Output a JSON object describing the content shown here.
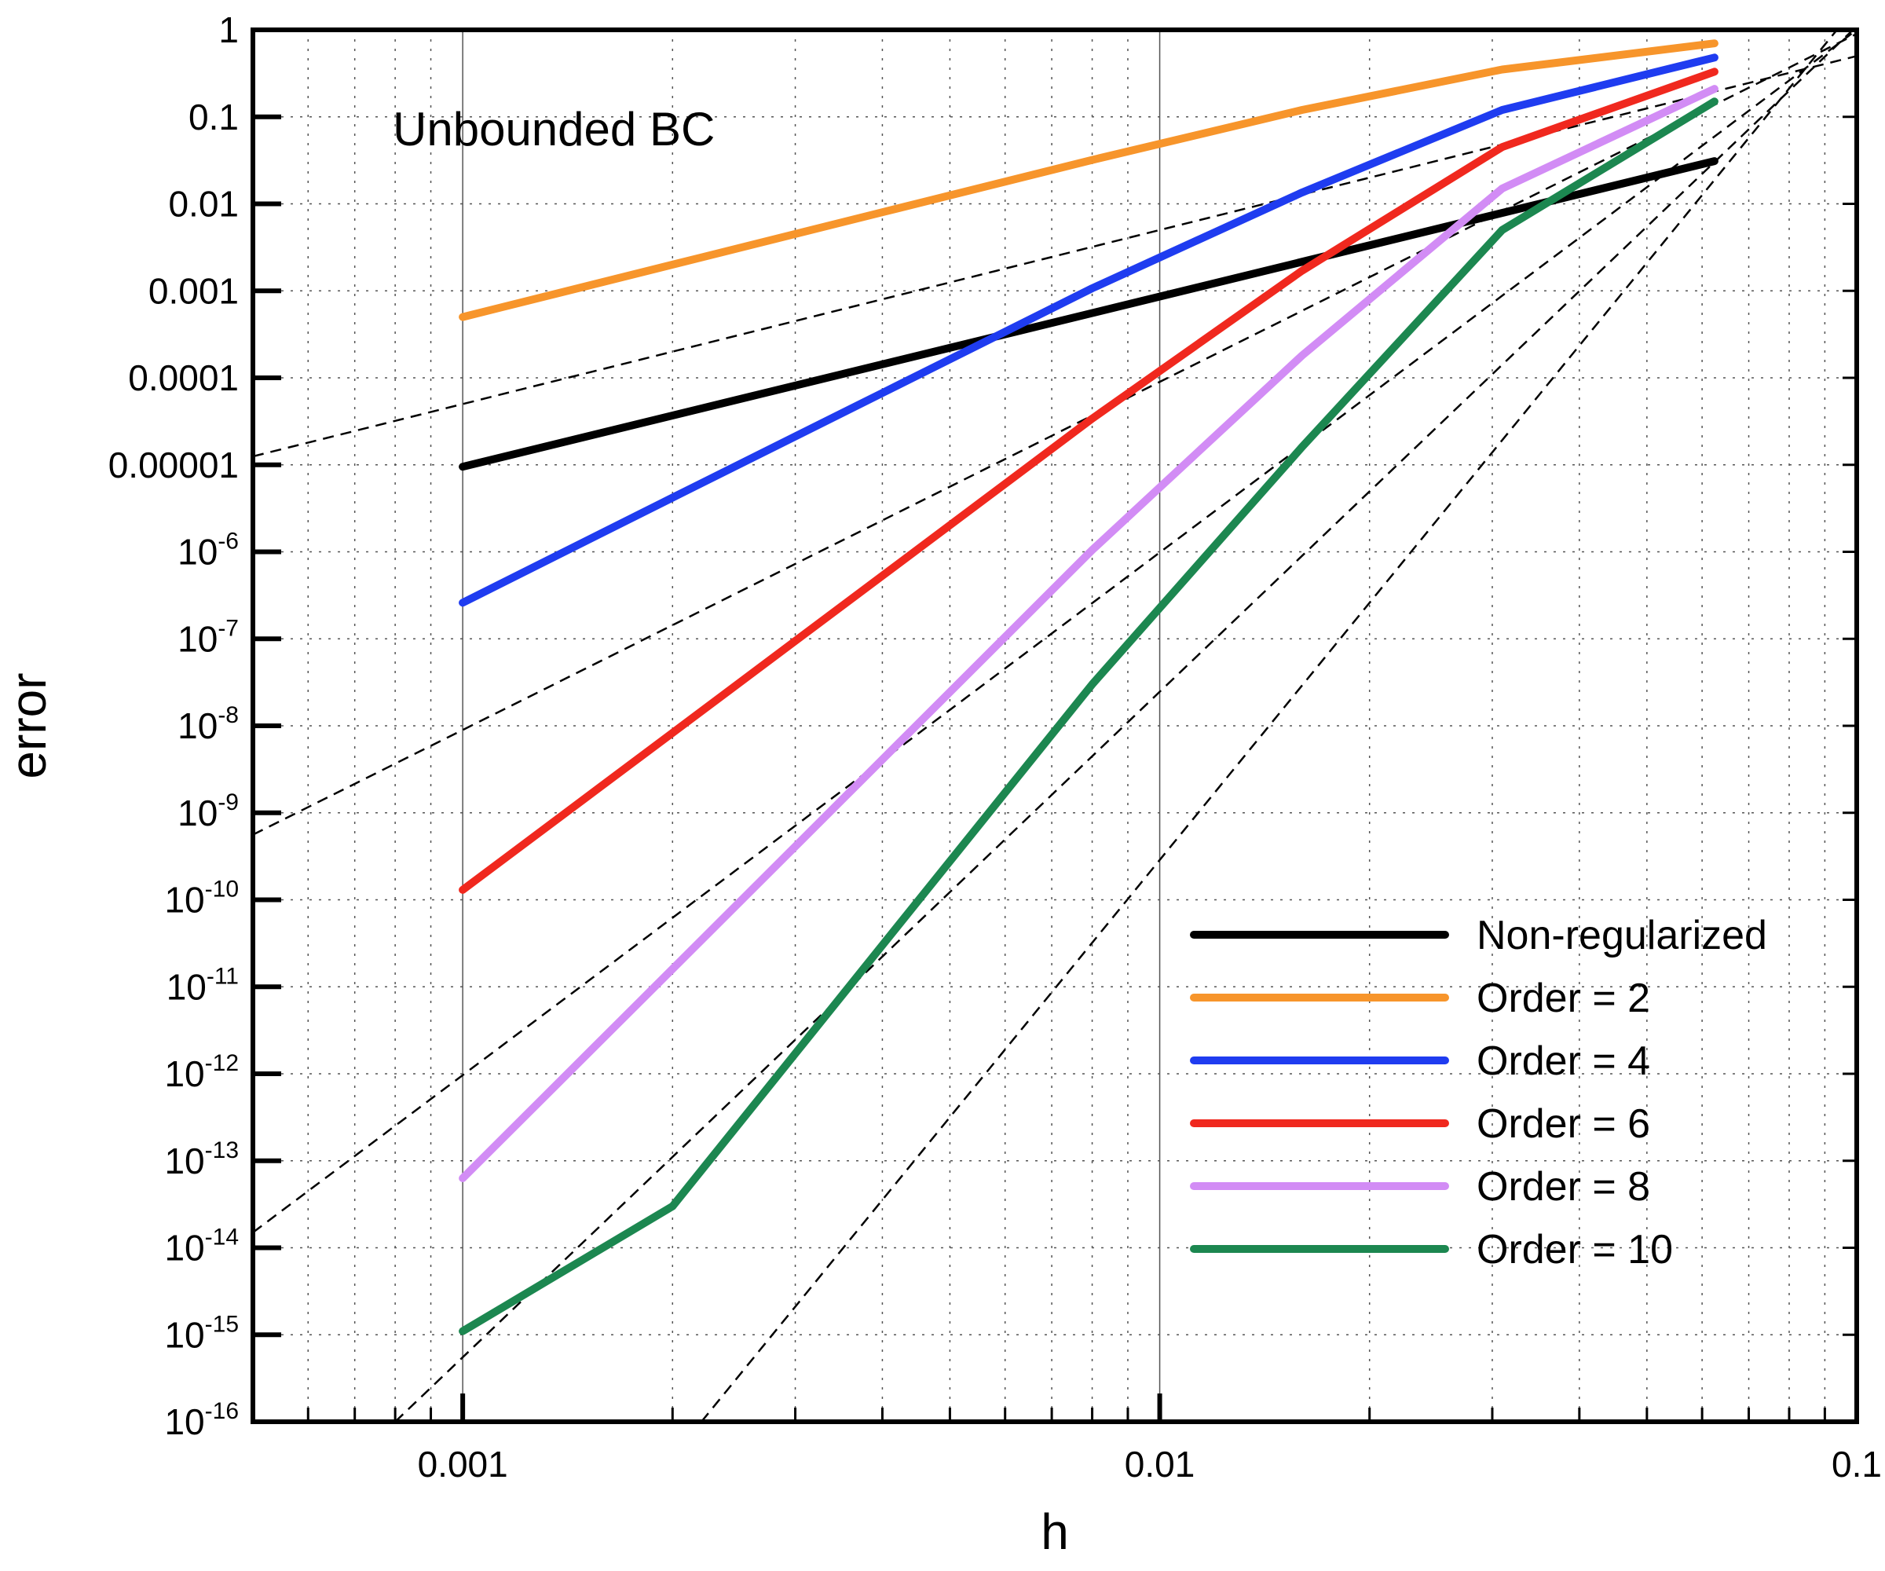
{
  "chart_data": {
    "type": "line",
    "title": "",
    "annotation": "Unbounded BC",
    "xlabel": "h",
    "ylabel": "error",
    "xscale": "log",
    "yscale": "log",
    "xlim": [
      0.0005,
      0.1
    ],
    "ylim": [
      1e-16,
      1
    ],
    "grid": true,
    "x_ticks": [
      {
        "value": 0.001,
        "label": "0.001"
      },
      {
        "value": 0.01,
        "label": "0.01"
      },
      {
        "value": 0.1,
        "label": "0.1"
      }
    ],
    "y_ticks": [
      {
        "value": 1,
        "label": "1"
      },
      {
        "value": 0.1,
        "label": "0.1"
      },
      {
        "value": 0.01,
        "label": "0.01"
      },
      {
        "value": 0.001,
        "label": "0.001"
      },
      {
        "value": 0.0001,
        "label": "0.0001"
      },
      {
        "value": 1e-05,
        "label": "0.00001"
      },
      {
        "value": 1e-06,
        "label": "10",
        "exp": "-6"
      },
      {
        "value": 1e-07,
        "label": "10",
        "exp": "-7"
      },
      {
        "value": 1e-08,
        "label": "10",
        "exp": "-8"
      },
      {
        "value": 1e-09,
        "label": "10",
        "exp": "-9"
      },
      {
        "value": 1e-10,
        "label": "10",
        "exp": "-10"
      },
      {
        "value": 1e-11,
        "label": "10",
        "exp": "-11"
      },
      {
        "value": 1e-12,
        "label": "10",
        "exp": "-12"
      },
      {
        "value": 1e-13,
        "label": "10",
        "exp": "-13"
      },
      {
        "value": 1e-14,
        "label": "10",
        "exp": "-14"
      },
      {
        "value": 1e-15,
        "label": "10",
        "exp": "-15"
      },
      {
        "value": 1e-16,
        "label": "10",
        "exp": "-16"
      }
    ],
    "legend_position": "bottom-right",
    "series": [
      {
        "name": "Non-regularized",
        "color": "#000000",
        "x": [
          0.001,
          0.0625
        ],
        "y": [
          9.5e-06,
          0.031
        ]
      },
      {
        "name": "Order = 2",
        "color": "#f7952b",
        "x": [
          0.001,
          0.002,
          0.004,
          0.008,
          0.016,
          0.031,
          0.0625
        ],
        "y": [
          0.0005,
          0.002,
          0.008,
          0.032,
          0.12,
          0.35,
          0.7
        ]
      },
      {
        "name": "Order = 4",
        "color": "#1f3cf0",
        "x": [
          0.001,
          0.002,
          0.004,
          0.008,
          0.016,
          0.031,
          0.0625
        ],
        "y": [
          2.6e-07,
          4.2e-06,
          6.7e-05,
          0.00107,
          0.0135,
          0.12,
          0.48
        ]
      },
      {
        "name": "Order = 6",
        "color": "#f0281e",
        "x": [
          0.001,
          0.002,
          0.004,
          0.008,
          0.016,
          0.031,
          0.0625
        ],
        "y": [
          1.3e-10,
          8.3e-09,
          5.3e-07,
          3.4e-05,
          0.0017,
          0.045,
          0.33
        ]
      },
      {
        "name": "Order = 8",
        "color": "#d28cf5",
        "x": [
          0.001,
          0.002,
          0.004,
          0.008,
          0.016,
          0.031,
          0.0625
        ],
        "y": [
          6.3e-14,
          1.6e-11,
          4.1e-09,
          1.05e-06,
          0.00018,
          0.015,
          0.21
        ]
      },
      {
        "name": "Order = 10",
        "color": "#1c8750",
        "x": [
          0.001,
          0.002,
          0.004,
          0.008,
          0.016,
          0.031,
          0.0625
        ],
        "y": [
          1.1e-15,
          3e-14,
          3e-11,
          3e-08,
          1.6e-05,
          0.005,
          0.15
        ]
      }
    ],
    "reference_lines": [
      {
        "order": 2,
        "x": [
          0.0005,
          0.1
        ],
        "y": [
          1.25e-05,
          0.5
        ]
      },
      {
        "order": 4,
        "x": [
          0.0005,
          0.1
        ],
        "y": [
          5.6e-10,
          0.9
        ]
      },
      {
        "order": 6,
        "x": [
          0.0005,
          0.1
        ],
        "y": [
          1.5e-14,
          1
        ]
      },
      {
        "order": 8,
        "x": [
          0.0008,
          0.1
        ],
        "y": [
          1e-16,
          1.1
        ]
      },
      {
        "order": 10,
        "x": [
          0.0022,
          0.1
        ],
        "y": [
          1e-16,
          1.9
        ]
      }
    ]
  }
}
